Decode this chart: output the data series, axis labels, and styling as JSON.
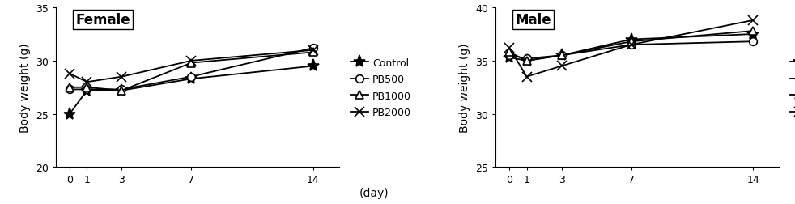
{
  "days": [
    0,
    1,
    3,
    7,
    14
  ],
  "female": {
    "title": "Female",
    "ylabel": "Body weight (g)",
    "ylim": [
      20,
      35
    ],
    "yticks": [
      20,
      25,
      30,
      35
    ],
    "Control": [
      25.0,
      27.2,
      27.2,
      28.3,
      29.5
    ],
    "PB500": [
      27.3,
      27.3,
      27.3,
      28.5,
      31.2
    ],
    "PB1000": [
      27.5,
      27.5,
      27.2,
      29.8,
      30.8
    ],
    "PB2000": [
      28.8,
      28.0,
      28.5,
      30.0,
      31.0
    ]
  },
  "male": {
    "title": "Male",
    "ylabel": "Body weight (g)",
    "ylim": [
      25,
      40
    ],
    "yticks": [
      25,
      30,
      35,
      40
    ],
    "Control": [
      35.3,
      35.0,
      35.5,
      37.0,
      37.5
    ],
    "PB500": [
      35.5,
      35.2,
      35.5,
      36.5,
      36.8
    ],
    "PB1000": [
      35.8,
      35.0,
      35.5,
      36.8,
      37.8
    ],
    "PB2000": [
      36.2,
      33.5,
      34.5,
      36.5,
      38.8
    ]
  },
  "series": [
    "Control",
    "PB500",
    "PB1000",
    "PB2000"
  ],
  "markers": [
    "*",
    "o",
    "^",
    "x"
  ],
  "marker_filled": [
    true,
    false,
    false,
    true
  ],
  "marker_size": [
    11,
    7,
    7,
    8
  ],
  "line_color": "black",
  "legend_fontsize": 9,
  "axis_label_fontsize": 10,
  "tick_fontsize": 9,
  "title_fontsize": 12
}
